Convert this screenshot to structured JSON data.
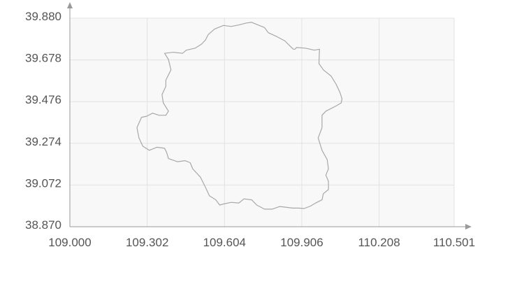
{
  "chart_data": {
    "type": "map",
    "title": "",
    "xlabel": "",
    "ylabel": "",
    "grid": true,
    "xlim": [
      109.0,
      110.501
    ],
    "ylim": [
      38.87,
      39.88
    ],
    "x_ticks": [
      "109.000",
      "109.302",
      "109.604",
      "109.906",
      "110.208",
      "110.501"
    ],
    "y_ticks": [
      "39.880",
      "39.678",
      "39.476",
      "39.274",
      "39.072",
      "38.870"
    ],
    "x_tick_values": [
      109.0,
      109.302,
      109.604,
      109.906,
      110.208,
      110.501
    ],
    "y_tick_values": [
      39.88,
      39.678,
      39.476,
      39.274,
      39.072,
      38.87
    ],
    "colors": {
      "plot_background": "#f8f8f8",
      "grid": "#e2e2e2",
      "axis": "#9a9a9a",
      "boundary": "#a8a8a8"
    },
    "boundary": [
      [
        109.54,
        39.8
      ],
      [
        109.565,
        39.827
      ],
      [
        109.6,
        39.845
      ],
      [
        109.63,
        39.84
      ],
      [
        109.66,
        39.847
      ],
      [
        109.69,
        39.857
      ],
      [
        109.71,
        39.86
      ],
      [
        109.73,
        39.85
      ],
      [
        109.76,
        39.835
      ],
      [
        109.775,
        39.81
      ],
      [
        109.81,
        39.79
      ],
      [
        109.84,
        39.77
      ],
      [
        109.86,
        39.745
      ],
      [
        109.873,
        39.73
      ],
      [
        109.88,
        39.73
      ],
      [
        109.885,
        39.738
      ],
      [
        109.92,
        39.735
      ],
      [
        109.955,
        39.725
      ],
      [
        109.975,
        39.73
      ],
      [
        109.973,
        39.66
      ],
      [
        109.99,
        39.63
      ],
      [
        110.02,
        39.6
      ],
      [
        110.04,
        39.56
      ],
      [
        110.055,
        39.52
      ],
      [
        110.063,
        39.49
      ],
      [
        110.06,
        39.47
      ],
      [
        110.04,
        39.455
      ],
      [
        110.0,
        39.43
      ],
      [
        109.985,
        39.41
      ],
      [
        109.985,
        39.35
      ],
      [
        109.97,
        39.3
      ],
      [
        109.985,
        39.24
      ],
      [
        110.005,
        39.195
      ],
      [
        110.01,
        39.15
      ],
      [
        110.0,
        39.12
      ],
      [
        110.01,
        39.09
      ],
      [
        110.01,
        39.05
      ],
      [
        109.99,
        39.03
      ],
      [
        109.985,
        39.0
      ],
      [
        109.96,
        38.985
      ],
      [
        109.94,
        38.97
      ],
      [
        109.915,
        38.958
      ],
      [
        109.895,
        38.96
      ],
      [
        109.87,
        38.96
      ],
      [
        109.82,
        38.968
      ],
      [
        109.79,
        38.955
      ],
      [
        109.76,
        38.955
      ],
      [
        109.73,
        38.975
      ],
      [
        109.71,
        39.0
      ],
      [
        109.68,
        39.005
      ],
      [
        109.66,
        38.985
      ],
      [
        109.63,
        38.988
      ],
      [
        109.6,
        38.98
      ],
      [
        109.585,
        38.975
      ],
      [
        109.57,
        39.0
      ],
      [
        109.545,
        39.02
      ],
      [
        109.53,
        39.06
      ],
      [
        109.51,
        39.11
      ],
      [
        109.48,
        39.15
      ],
      [
        109.47,
        39.18
      ],
      [
        109.45,
        39.19
      ],
      [
        109.42,
        39.185
      ],
      [
        109.385,
        39.2
      ],
      [
        109.378,
        39.23
      ],
      [
        109.37,
        39.25
      ],
      [
        109.34,
        39.255
      ],
      [
        109.31,
        39.24
      ],
      [
        109.285,
        39.26
      ],
      [
        109.27,
        39.3
      ],
      [
        109.262,
        39.35
      ],
      [
        109.28,
        39.4
      ],
      [
        109.3,
        39.405
      ],
      [
        109.323,
        39.42
      ],
      [
        109.348,
        39.41
      ],
      [
        109.375,
        39.41
      ],
      [
        109.385,
        39.43
      ],
      [
        109.365,
        39.47
      ],
      [
        109.36,
        39.51
      ],
      [
        109.375,
        39.55
      ],
      [
        109.375,
        39.58
      ],
      [
        109.395,
        39.63
      ],
      [
        109.385,
        39.68
      ],
      [
        109.37,
        39.71
      ],
      [
        109.405,
        39.715
      ],
      [
        109.44,
        39.71
      ],
      [
        109.455,
        39.725
      ],
      [
        109.49,
        39.735
      ],
      [
        109.515,
        39.755
      ],
      [
        109.53,
        39.775
      ]
    ]
  }
}
